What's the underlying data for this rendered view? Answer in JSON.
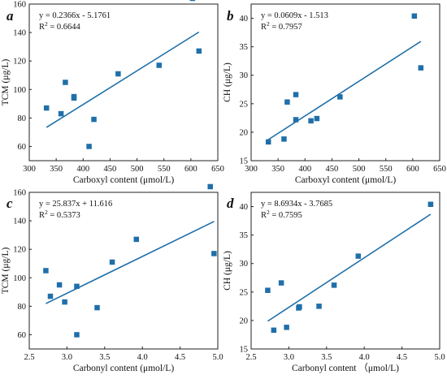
{
  "chart_data": [
    {
      "type": "scatter",
      "panel_letter": "a",
      "equation": "y = 0.2366x - 5.1761",
      "r2_label": "R",
      "r2_sup": "2",
      "r2_value": " = 0.6644",
      "xlabel": "Carboxyl content (μmol/L)",
      "ylabel": "TCM (μg/L)",
      "xlim": [
        300,
        650
      ],
      "ylim": [
        50,
        160
      ],
      "xticks": [
        300,
        350,
        400,
        450,
        500,
        550,
        600,
        650
      ],
      "yticks": [
        60,
        80,
        100,
        120,
        140,
        160
      ],
      "fit": {
        "slope": 0.2366,
        "intercept": -5.1761,
        "x_range": [
          332,
          615
        ]
      },
      "points": [
        {
          "x": 332,
          "y": 87
        },
        {
          "x": 359,
          "y": 83
        },
        {
          "x": 367,
          "y": 105
        },
        {
          "x": 383,
          "y": 94
        },
        {
          "x": 383,
          "y": 95
        },
        {
          "x": 411,
          "y": 60
        },
        {
          "x": 420,
          "y": 79
        },
        {
          "x": 465,
          "y": 111
        },
        {
          "x": 541,
          "y": 117
        },
        {
          "x": 603,
          "y": 164
        },
        {
          "x": 615,
          "y": 127
        }
      ]
    },
    {
      "type": "scatter",
      "panel_letter": "b",
      "equation": "y = 0.0609x - 1.513",
      "r2_label": "R",
      "r2_sup": "2",
      "r2_value": " = 0.7957",
      "xlabel": "Carboxyl content (μmol/L)",
      "ylabel": "CH (μg/L)",
      "xlim": [
        300,
        650
      ],
      "ylim": [
        15,
        42.5
      ],
      "xticks": [
        300,
        350,
        400,
        450,
        500,
        550,
        600,
        650
      ],
      "yticks": [
        15,
        20,
        25,
        30,
        35,
        40
      ],
      "fit": {
        "slope": 0.0609,
        "intercept": -1.513,
        "x_range": [
          332,
          615
        ]
      },
      "points": [
        {
          "x": 332,
          "y": 18.3
        },
        {
          "x": 361,
          "y": 18.8
        },
        {
          "x": 367,
          "y": 25.3
        },
        {
          "x": 383,
          "y": 26.6
        },
        {
          "x": 383,
          "y": 22.2
        },
        {
          "x": 411,
          "y": 22.0
        },
        {
          "x": 422,
          "y": 22.4
        },
        {
          "x": 465,
          "y": 26.2
        },
        {
          "x": 603,
          "y": 40.4
        },
        {
          "x": 615,
          "y": 31.3
        }
      ]
    },
    {
      "type": "scatter",
      "panel_letter": "c",
      "equation": "y = 25.837x + 11.616",
      "r2_label": "R",
      "r2_sup": "2",
      "r2_value": " = 0.5373",
      "xlabel": "Carbonyl content (μmol/L)",
      "ylabel": "TCM (μg/L)",
      "xlim": [
        2.5,
        5.0
      ],
      "ylim": [
        50,
        160
      ],
      "xticks": [
        2.5,
        3.0,
        3.5,
        4.0,
        4.5,
        5.0
      ],
      "yticks": [
        60,
        80,
        100,
        120,
        140,
        160
      ],
      "fit": {
        "slope": 25.837,
        "intercept": 11.616,
        "x_range": [
          2.72,
          4.95
        ]
      },
      "points": [
        {
          "x": 2.72,
          "y": 105
        },
        {
          "x": 2.78,
          "y": 87
        },
        {
          "x": 2.9,
          "y": 95
        },
        {
          "x": 2.97,
          "y": 83
        },
        {
          "x": 3.13,
          "y": 94
        },
        {
          "x": 3.13,
          "y": 60
        },
        {
          "x": 3.4,
          "y": 79
        },
        {
          "x": 3.6,
          "y": 111
        },
        {
          "x": 3.92,
          "y": 127
        },
        {
          "x": 4.9,
          "y": 164
        },
        {
          "x": 4.95,
          "y": 117
        }
      ]
    },
    {
      "type": "scatter",
      "panel_letter": "d",
      "equation": "y = 8.6934x - 3.7685",
      "r2_label": "R",
      "r2_sup": "2",
      "r2_value": " = 0.7595",
      "xlabel": "Carbonyl content （μmol/L)",
      "ylabel": "CH (μg/L)",
      "xlim": [
        2.5,
        5.0
      ],
      "ylim": [
        15,
        42.5
      ],
      "xticks": [
        2.5,
        3.0,
        3.5,
        4.0,
        4.5,
        5.0
      ],
      "yticks": [
        15,
        20,
        25,
        30,
        35,
        40
      ],
      "fit": {
        "slope": 8.6934,
        "intercept": -3.7685,
        "x_range": [
          2.72,
          4.88
        ]
      },
      "points": [
        {
          "x": 2.72,
          "y": 25.3
        },
        {
          "x": 2.8,
          "y": 18.3
        },
        {
          "x": 2.9,
          "y": 26.6
        },
        {
          "x": 2.97,
          "y": 18.8
        },
        {
          "x": 3.13,
          "y": 22.2
        },
        {
          "x": 3.14,
          "y": 22.4
        },
        {
          "x": 3.4,
          "y": 22.5
        },
        {
          "x": 3.6,
          "y": 26.2
        },
        {
          "x": 3.92,
          "y": 31.3
        },
        {
          "x": 4.88,
          "y": 40.4
        }
      ]
    }
  ]
}
